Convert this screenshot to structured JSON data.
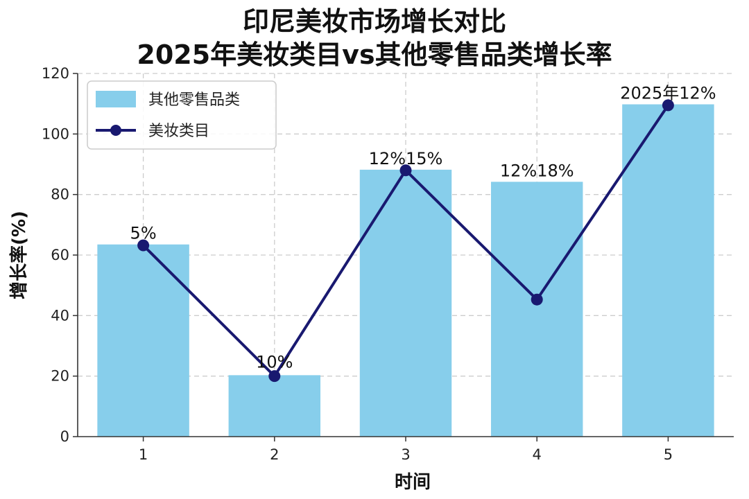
{
  "chart_data": {
    "type": "bar+line",
    "title": "印尼美妆市场增长对比",
    "subtitle": "2025年美妆类目vs其他零售品类增长率",
    "xlabel": "时间",
    "ylabel": "增长率(%)",
    "categories": [
      "1",
      "2",
      "3",
      "4",
      "5"
    ],
    "ylim": [
      0,
      120
    ],
    "yticks": [
      0,
      20,
      40,
      60,
      80,
      100,
      120
    ],
    "grid": true,
    "legend_position": "top-left",
    "series": [
      {
        "name": "其他零售品类",
        "kind": "bar",
        "color": "#87CEEB",
        "values": [
          63.5,
          20.3,
          88.2,
          84.2,
          109.8
        ]
      },
      {
        "name": "美妆类目",
        "kind": "line",
        "color": "#191970",
        "values": [
          63.2,
          20.0,
          88.0,
          45.3,
          109.5
        ]
      }
    ],
    "annotations": [
      "5%",
      "10%",
      "12%15%",
      "12%18%",
      "2025年12%"
    ]
  }
}
